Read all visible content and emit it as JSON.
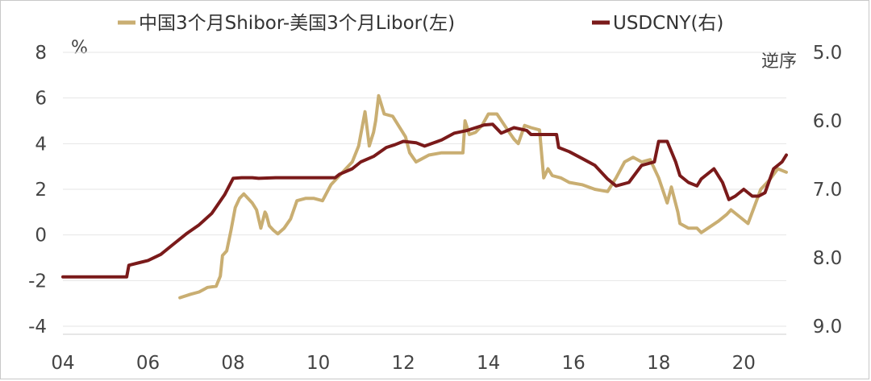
{
  "chart_data": {
    "type": "line",
    "title": "",
    "legend": {
      "placement": "top",
      "entries": [
        {
          "series_key": "spread",
          "label": "中国3个月Shibor-美国3个月Libor(左)"
        },
        {
          "series_key": "usdcny",
          "label": "USDCNY(右)"
        }
      ]
    },
    "left_axis": {
      "unit_label": "%",
      "ylim": [
        -4,
        8
      ],
      "ticks": [
        "-4",
        "-2",
        "0",
        "2",
        "4",
        "6",
        "8"
      ]
    },
    "right_axis": {
      "unit_label": "逆序",
      "ylim": [
        5.0,
        9.0
      ],
      "inverted": true,
      "ticks": [
        "5.0",
        "6.0",
        "7.0",
        "8.0",
        "9.0"
      ]
    },
    "x_axis": {
      "xlim": [
        2004,
        2021
      ],
      "ticks": [
        "04",
        "06",
        "08",
        "10",
        "12",
        "14",
        "16",
        "18",
        "20"
      ]
    },
    "grid": "horizontal",
    "colors": {
      "spread": "#c9ae72",
      "usdcny": "#7a1a1a"
    },
    "series": [
      {
        "key": "spread",
        "name": "中国3个月Shibor-美国3个月Libor(左)",
        "axis": "left",
        "x": [
          2006.75,
          2007.0,
          2007.2,
          2007.4,
          2007.6,
          2007.7,
          2007.75,
          2007.85,
          2007.95,
          2008.05,
          2008.15,
          2008.25,
          2008.45,
          2008.55,
          2008.65,
          2008.75,
          2008.78,
          2008.85,
          2008.95,
          2009.05,
          2009.2,
          2009.35,
          2009.5,
          2009.7,
          2009.9,
          2010.1,
          2010.3,
          2010.45,
          2010.6,
          2010.8,
          2010.95,
          2011.1,
          2011.2,
          2011.3,
          2011.35,
          2011.42,
          2011.55,
          2011.75,
          2011.95,
          2012.05,
          2012.15,
          2012.3,
          2012.4,
          2012.6,
          2012.9,
          2013.1,
          2013.4,
          2013.45,
          2013.55,
          2013.7,
          2013.85,
          2014.0,
          2014.2,
          2014.45,
          2014.6,
          2014.7,
          2014.85,
          2015.0,
          2015.2,
          2015.3,
          2015.4,
          2015.5,
          2015.7,
          2015.9,
          2016.2,
          2016.5,
          2016.8,
          2017.0,
          2017.2,
          2017.4,
          2017.6,
          2017.8,
          2018.0,
          2018.2,
          2018.3,
          2018.45,
          2018.5,
          2018.7,
          2018.9,
          2019.0,
          2019.2,
          2019.4,
          2019.6,
          2019.7,
          2019.9,
          2020.1,
          2020.3,
          2020.4,
          2020.6,
          2020.8,
          2021.0
        ],
        "values": [
          -2.75,
          -2.6,
          -2.5,
          -2.3,
          -2.25,
          -1.8,
          -0.9,
          -0.7,
          0.2,
          1.2,
          1.6,
          1.8,
          1.4,
          1.1,
          0.3,
          1.0,
          0.9,
          0.4,
          0.2,
          0.05,
          0.3,
          0.7,
          1.5,
          1.6,
          1.6,
          1.5,
          2.2,
          2.5,
          2.8,
          3.2,
          3.9,
          5.4,
          3.9,
          4.5,
          5.0,
          6.1,
          5.3,
          5.2,
          4.6,
          4.3,
          3.6,
          3.2,
          3.3,
          3.5,
          3.6,
          3.6,
          3.6,
          5.0,
          4.4,
          4.5,
          4.8,
          5.3,
          5.3,
          4.6,
          4.2,
          4.0,
          4.8,
          4.7,
          4.6,
          2.5,
          2.9,
          2.6,
          2.5,
          2.3,
          2.2,
          2.0,
          1.9,
          2.5,
          3.2,
          3.4,
          3.2,
          3.3,
          2.5,
          1.4,
          2.1,
          1.0,
          0.5,
          0.3,
          0.3,
          0.1,
          0.35,
          0.6,
          0.9,
          1.1,
          0.8,
          0.5,
          1.5,
          2.0,
          2.4,
          2.9,
          2.75
        ]
      },
      {
        "key": "usdcny",
        "name": "USDCNY(右)",
        "axis": "right",
        "x": [
          2004.0,
          2005.5,
          2005.55,
          2005.8,
          2006.0,
          2006.3,
          2006.6,
          2006.9,
          2007.2,
          2007.5,
          2007.8,
          2008.0,
          2008.2,
          2008.45,
          2008.6,
          2009.0,
          2009.5,
          2010.0,
          2010.4,
          2010.5,
          2010.8,
          2011.0,
          2011.3,
          2011.6,
          2011.8,
          2012.0,
          2012.3,
          2012.5,
          2012.9,
          2013.2,
          2013.5,
          2013.9,
          2014.1,
          2014.3,
          2014.6,
          2014.9,
          2015.0,
          2015.4,
          2015.6,
          2015.65,
          2015.9,
          2016.2,
          2016.5,
          2016.8,
          2017.0,
          2017.3,
          2017.6,
          2017.9,
          2018.0,
          2018.2,
          2018.4,
          2018.5,
          2018.7,
          2018.9,
          2019.0,
          2019.3,
          2019.5,
          2019.65,
          2019.8,
          2020.0,
          2020.2,
          2020.35,
          2020.5,
          2020.7,
          2020.9,
          2021.0
        ],
        "values": [
          8.28,
          8.28,
          8.11,
          8.07,
          8.04,
          7.95,
          7.8,
          7.65,
          7.52,
          7.35,
          7.08,
          6.84,
          6.83,
          6.83,
          6.84,
          6.83,
          6.83,
          6.83,
          6.83,
          6.78,
          6.7,
          6.6,
          6.52,
          6.39,
          6.35,
          6.3,
          6.32,
          6.37,
          6.28,
          6.18,
          6.14,
          6.06,
          6.05,
          6.18,
          6.1,
          6.14,
          6.2,
          6.2,
          6.2,
          6.39,
          6.45,
          6.55,
          6.65,
          6.85,
          6.95,
          6.9,
          6.65,
          6.6,
          6.3,
          6.3,
          6.6,
          6.8,
          6.9,
          6.95,
          6.85,
          6.7,
          6.9,
          7.15,
          7.1,
          7.0,
          7.1,
          7.1,
          7.05,
          6.7,
          6.6,
          6.5
        ]
      }
    ]
  }
}
